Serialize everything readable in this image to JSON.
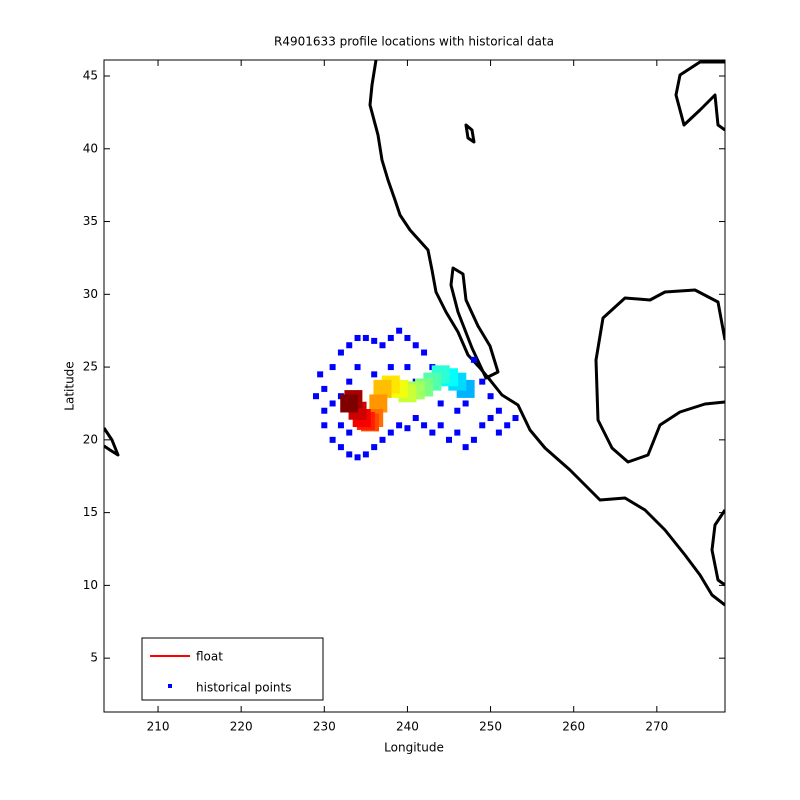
{
  "chart_data": {
    "type": "scatter",
    "title": "R4901633 profile locations with historical data",
    "x_label": "Longitude",
    "y_label": "Latitude",
    "xlim": [
      203.5,
      278.2
    ],
    "ylim": [
      1.3,
      46.1
    ],
    "xticks": [
      210,
      220,
      230,
      240,
      250,
      260,
      270
    ],
    "yticks": [
      5,
      10,
      15,
      20,
      25,
      30,
      35,
      40,
      45
    ],
    "legend": "lower left",
    "series": [
      {
        "name": "float",
        "color": "#ff0000",
        "x": [
          247,
          246,
          245,
          244,
          243,
          242,
          241,
          240,
          239,
          238,
          237,
          236.5,
          236,
          235.5,
          235,
          234.5,
          234,
          233.5,
          233
        ],
        "y": [
          23.5,
          24,
          24.3,
          24.5,
          24,
          23.6,
          23.4,
          23.2,
          23.5,
          23.8,
          23.5,
          22.5,
          21.5,
          21.2,
          21.3,
          21.5,
          22,
          22.8,
          22.5
        ]
      },
      {
        "name": "historical points",
        "color": "#0000ff",
        "x": [
          229,
          229.5,
          230,
          230,
          231,
          231,
          232,
          232,
          233,
          233,
          234,
          234,
          235,
          235,
          236,
          236,
          237,
          237,
          238,
          238,
          239,
          239,
          240,
          240,
          241,
          241,
          242,
          242,
          243,
          243,
          244,
          245,
          246,
          247,
          248,
          249,
          250,
          251,
          252,
          253,
          250,
          249,
          248,
          230,
          231,
          232,
          233,
          234,
          232,
          233,
          234,
          236,
          238,
          240,
          241,
          242,
          244,
          246,
          247,
          251
        ],
        "y": [
          23,
          24.5,
          22,
          21,
          25,
          20,
          26,
          19.5,
          26.5,
          19,
          27,
          18.8,
          27,
          19,
          26.8,
          19.5,
          26.5,
          20,
          27,
          20.5,
          27.5,
          21,
          27,
          20.8,
          26.5,
          21.5,
          26,
          21,
          25,
          20.5,
          21,
          20,
          20.5,
          19.5,
          20,
          21,
          21.5,
          22,
          21,
          21.5,
          23,
          24,
          25.5,
          23.5,
          22.5,
          23,
          24,
          25,
          21,
          20.5,
          22,
          24.5,
          25,
          25,
          24,
          23.5,
          22.5,
          22,
          22.5,
          20.5
        ]
      }
    ]
  }
}
